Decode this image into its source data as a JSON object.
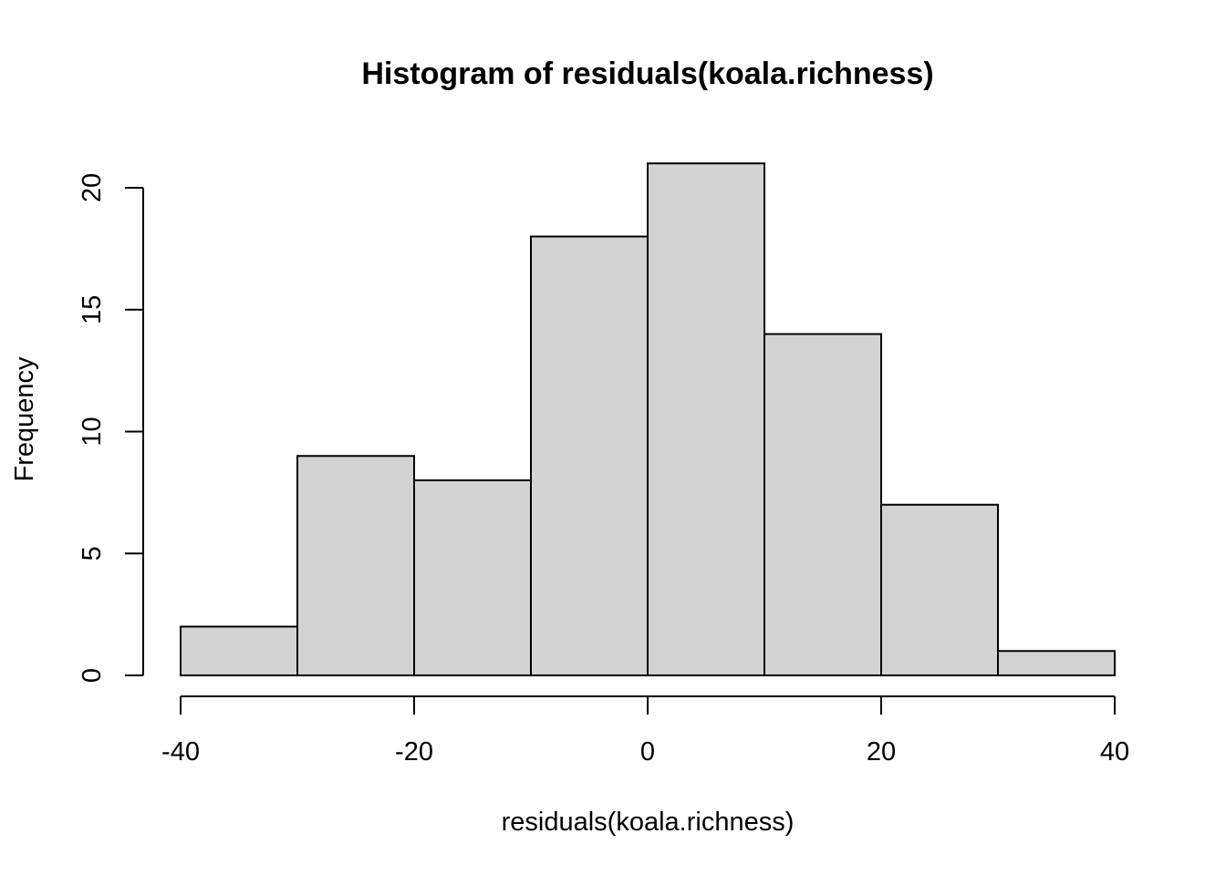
{
  "chart_data": {
    "type": "bar",
    "title": "Histogram of residuals(koala.richness)",
    "xlabel": "residuals(koala.richness)",
    "ylabel": "Frequency",
    "bins": [
      {
        "start": -40,
        "end": -30,
        "count": 2
      },
      {
        "start": -30,
        "end": -20,
        "count": 9
      },
      {
        "start": -20,
        "end": -10,
        "count": 8
      },
      {
        "start": -10,
        "end": 0,
        "count": 18
      },
      {
        "start": 0,
        "end": 10,
        "count": 21
      },
      {
        "start": 10,
        "end": 20,
        "count": 14
      },
      {
        "start": 20,
        "end": 30,
        "count": 7
      },
      {
        "start": 30,
        "end": 40,
        "count": 1
      }
    ],
    "xlim": [
      -40,
      40
    ],
    "ylim": [
      0,
      21
    ],
    "xticks": [
      -40,
      -20,
      0,
      20,
      40
    ],
    "yticks": [
      0,
      5,
      10,
      15,
      20
    ],
    "bar_fill": "#d3d3d3",
    "bar_stroke": "#000000",
    "grid": false
  }
}
